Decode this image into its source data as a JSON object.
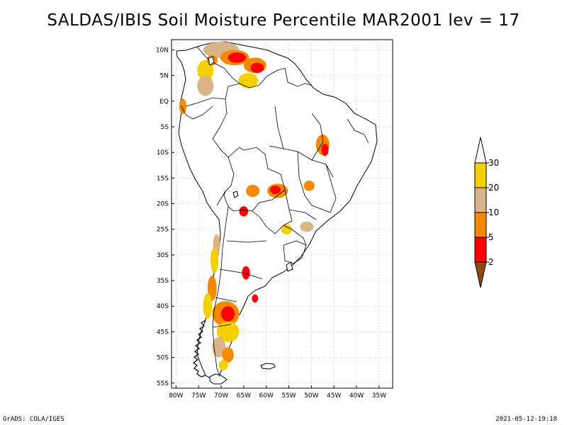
{
  "title": "SALDAS/IBIS Soil Moisture Percentile MAR2001 lev = 17",
  "footer": {
    "left": "GrADS: COLA/IGES",
    "right": "2021-05-12-19:18"
  },
  "map": {
    "lon_min": -81,
    "lon_max": -32,
    "lat_min": -56,
    "lat_max": 12,
    "lat_ticks": [
      {
        "label": "10N",
        "value": 10
      },
      {
        "label": "5N",
        "value": 5
      },
      {
        "label": "EQ",
        "value": 0
      },
      {
        "label": "5S",
        "value": -5
      },
      {
        "label": "10S",
        "value": -10
      },
      {
        "label": "15S",
        "value": -15
      },
      {
        "label": "20S",
        "value": -20
      },
      {
        "label": "25S",
        "value": -25
      },
      {
        "label": "30S",
        "value": -30
      },
      {
        "label": "35S",
        "value": -35
      },
      {
        "label": "40S",
        "value": -40
      },
      {
        "label": "45S",
        "value": -45
      },
      {
        "label": "50S",
        "value": -50
      },
      {
        "label": "55S",
        "value": -55
      }
    ],
    "lon_ticks": [
      {
        "label": "80W",
        "value": -80
      },
      {
        "label": "75W",
        "value": -75
      },
      {
        "label": "70W",
        "value": -70
      },
      {
        "label": "65W",
        "value": -65
      },
      {
        "label": "60W",
        "value": -60
      },
      {
        "label": "55W",
        "value": -55
      },
      {
        "label": "50W",
        "value": -50
      },
      {
        "label": "45W",
        "value": -45
      },
      {
        "label": "40W",
        "value": -40
      },
      {
        "label": "35W",
        "value": -35
      }
    ]
  },
  "colorbar": {
    "bins": [
      {
        "label": "30",
        "color": "#ffffff"
      },
      {
        "label": "20",
        "color": "#f5d000"
      },
      {
        "label": "10",
        "color": "#d8b488"
      },
      {
        "label": "5",
        "color": "#f58a00"
      },
      {
        "label": "2",
        "color": "#ff0000"
      },
      {
        "label": "",
        "color": "#8b4a14"
      }
    ]
  },
  "colors": {
    "yellow": "#f5d000",
    "tan": "#d8b488",
    "orange": "#f58a00",
    "red": "#ff0000",
    "brown": "#8b4a14"
  },
  "anomalies": [
    {
      "lon": -70,
      "lat": 10,
      "rx": 4.0,
      "ry": 1.6,
      "cls": "tan"
    },
    {
      "lon": -67,
      "lat": 8.5,
      "rx": 3.2,
      "ry": 1.5,
      "cls": "orange"
    },
    {
      "lon": -66.5,
      "lat": 8.5,
      "rx": 2.0,
      "ry": 1.0,
      "cls": "red"
    },
    {
      "lon": -62.5,
      "lat": 7,
      "rx": 2.5,
      "ry": 1.5,
      "cls": "orange"
    },
    {
      "lon": -62,
      "lat": 6.5,
      "rx": 1.5,
      "ry": 1.0,
      "cls": "red"
    },
    {
      "lon": -64,
      "lat": 4,
      "rx": 2.2,
      "ry": 1.5,
      "cls": "yellow"
    },
    {
      "lon": -73.5,
      "lat": 6,
      "rx": 1.8,
      "ry": 2.0,
      "cls": "yellow"
    },
    {
      "lon": -73.5,
      "lat": 3,
      "rx": 1.8,
      "ry": 2.0,
      "cls": "tan"
    },
    {
      "lon": -72,
      "lat": 8,
      "rx": 1.2,
      "ry": 1.0,
      "cls": "orange"
    },
    {
      "lon": -78.5,
      "lat": -1,
      "rx": 0.8,
      "ry": 1.5,
      "cls": "orange"
    },
    {
      "lon": -47.5,
      "lat": -8.5,
      "rx": 1.5,
      "ry": 2.0,
      "cls": "orange"
    },
    {
      "lon": -47,
      "lat": -9.5,
      "rx": 0.8,
      "ry": 1.2,
      "cls": "red"
    },
    {
      "lon": -63,
      "lat": -17.5,
      "rx": 1.5,
      "ry": 1.2,
      "cls": "orange"
    },
    {
      "lon": -57.5,
      "lat": -17.5,
      "rx": 2.3,
      "ry": 1.4,
      "cls": "orange"
    },
    {
      "lon": -58,
      "lat": -17.3,
      "rx": 1.2,
      "ry": 0.8,
      "cls": "red"
    },
    {
      "lon": -50.5,
      "lat": -16.5,
      "rx": 1.2,
      "ry": 1.0,
      "cls": "orange"
    },
    {
      "lon": -65,
      "lat": -21.5,
      "rx": 1.0,
      "ry": 1.0,
      "cls": "red"
    },
    {
      "lon": -55.5,
      "lat": -25,
      "rx": 1.2,
      "ry": 1.0,
      "cls": "yellow"
    },
    {
      "lon": -51,
      "lat": -24.5,
      "rx": 1.5,
      "ry": 1.0,
      "cls": "tan"
    },
    {
      "lon": -64.5,
      "lat": -33.5,
      "rx": 0.9,
      "ry": 1.3,
      "cls": "red"
    },
    {
      "lon": -71,
      "lat": -28,
      "rx": 0.8,
      "ry": 2.0,
      "cls": "tan"
    },
    {
      "lon": -71.5,
      "lat": -31,
      "rx": 0.9,
      "ry": 2.5,
      "cls": "yellow"
    },
    {
      "lon": -72,
      "lat": -36.5,
      "rx": 1.0,
      "ry": 2.5,
      "cls": "orange"
    },
    {
      "lon": -73,
      "lat": -40,
      "rx": 1.0,
      "ry": 2.5,
      "cls": "yellow"
    },
    {
      "lon": -69,
      "lat": -41.5,
      "rx": 3.0,
      "ry": 2.5,
      "cls": "orange"
    },
    {
      "lon": -68.5,
      "lat": -41.5,
      "rx": 1.5,
      "ry": 1.5,
      "cls": "red"
    },
    {
      "lon": -68.5,
      "lat": -45,
      "rx": 2.5,
      "ry": 2.0,
      "cls": "yellow"
    },
    {
      "lon": -70.5,
      "lat": -48,
      "rx": 1.5,
      "ry": 2.0,
      "cls": "tan"
    },
    {
      "lon": -68.5,
      "lat": -49.5,
      "rx": 1.3,
      "ry": 1.5,
      "cls": "orange"
    },
    {
      "lon": -69.5,
      "lat": -51.5,
      "rx": 1.0,
      "ry": 1.0,
      "cls": "yellow"
    },
    {
      "lon": -62.5,
      "lat": -38.5,
      "rx": 0.7,
      "ry": 0.8,
      "cls": "red"
    }
  ]
}
